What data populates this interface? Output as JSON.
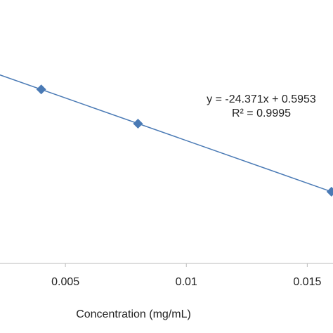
{
  "chart_data": {
    "type": "scatter",
    "x_label": "Concentration (mg/mL)",
    "x": [
      0.004,
      0.008,
      0.016
    ],
    "series": [
      {
        "color": "#4a7ab5",
        "values": [
          0.498,
          0.4,
          0.2054
        ]
      }
    ],
    "xlim": [
      0,
      0.0165
    ],
    "ylim": [
      0,
      0.8
    ],
    "xticks": [
      0.005,
      0.01,
      0.015
    ],
    "trendline": {
      "slope": -24.371,
      "intercept": 0.5953,
      "color": "#4a7ab5",
      "label": "y = -24.371x + 0.5953",
      "r2_label": "R² = 0.9995"
    }
  }
}
